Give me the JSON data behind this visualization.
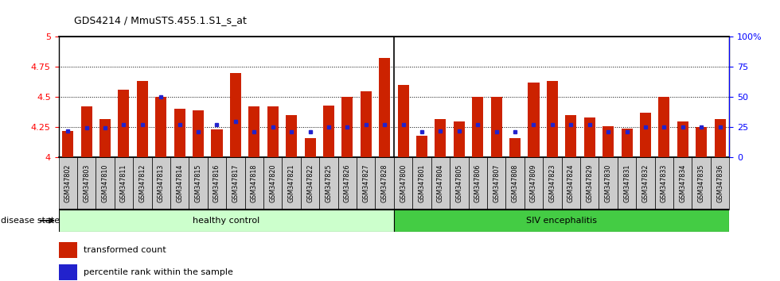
{
  "title": "GDS4214 / MmuSTS.455.1.S1_s_at",
  "samples": [
    "GSM347802",
    "GSM347803",
    "GSM347810",
    "GSM347811",
    "GSM347812",
    "GSM347813",
    "GSM347814",
    "GSM347815",
    "GSM347816",
    "GSM347817",
    "GSM347818",
    "GSM347820",
    "GSM347821",
    "GSM347822",
    "GSM347825",
    "GSM347826",
    "GSM347827",
    "GSM347828",
    "GSM347800",
    "GSM347801",
    "GSM347804",
    "GSM347805",
    "GSM347806",
    "GSM347807",
    "GSM347808",
    "GSM347809",
    "GSM347823",
    "GSM347824",
    "GSM347829",
    "GSM347830",
    "GSM347831",
    "GSM347832",
    "GSM347833",
    "GSM347834",
    "GSM347835",
    "GSM347836"
  ],
  "bar_values": [
    4.22,
    4.42,
    4.32,
    4.56,
    4.63,
    4.5,
    4.4,
    4.39,
    4.23,
    4.7,
    4.42,
    4.42,
    4.35,
    4.16,
    4.43,
    4.5,
    4.55,
    4.82,
    4.6,
    4.18,
    4.32,
    4.3,
    4.5,
    4.5,
    4.16,
    4.62,
    4.63,
    4.35,
    4.33,
    4.26,
    4.24,
    4.37,
    4.5,
    4.3,
    4.25,
    4.32
  ],
  "percentile_values": [
    4.22,
    4.245,
    4.245,
    4.27,
    4.27,
    4.5,
    4.27,
    4.215,
    4.27,
    4.3,
    4.215,
    4.25,
    4.215,
    4.215,
    4.25,
    4.25,
    4.27,
    4.27,
    4.27,
    4.215,
    4.22,
    4.22,
    4.27,
    4.215,
    4.215,
    4.27,
    4.27,
    4.27,
    4.27,
    4.215,
    4.215,
    4.25,
    4.25,
    4.25,
    4.25,
    4.25
  ],
  "n_healthy": 18,
  "n_siv": 18,
  "ylim_left": [
    4.0,
    5.0
  ],
  "yticks_left": [
    4.0,
    4.25,
    4.5,
    4.75,
    5.0
  ],
  "ytick_labels_left": [
    "4",
    "4.25",
    "4.5",
    "4.75",
    "5"
  ],
  "ylim_right": [
    0,
    100
  ],
  "yticks_right": [
    0,
    25,
    50,
    75,
    100
  ],
  "ytick_labels_right": [
    "0",
    "25",
    "50",
    "75",
    "100%"
  ],
  "bar_color": "#cc2200",
  "dot_color": "#2222cc",
  "healthy_color": "#ccffcc",
  "siv_color": "#44cc44",
  "healthy_label": "healthy control",
  "siv_label": "SIV encephalitis",
  "disease_state_label": "disease state",
  "legend1": "transformed count",
  "legend2": "percentile rank within the sample",
  "bg_color": "#cccccc",
  "grid_yticks": [
    4.25,
    4.5,
    4.75
  ]
}
